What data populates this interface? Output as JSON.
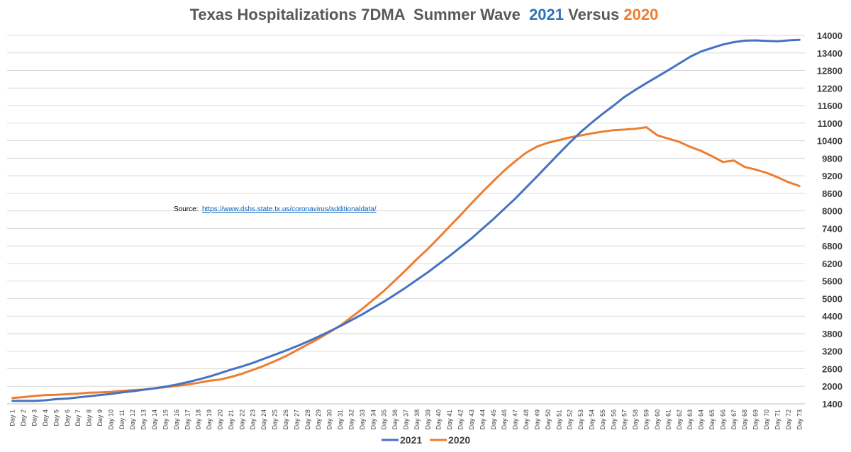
{
  "chart_data": {
    "type": "line",
    "title_parts": [
      {
        "text": "Texas Hospitalizations 7DMA  Summer Wave  ",
        "color": "#595959"
      },
      {
        "text": "2021",
        "color": "#2E75B6"
      },
      {
        "text": " Versus ",
        "color": "#595959"
      },
      {
        "text": "2020",
        "color": "#ED7D31"
      }
    ],
    "source_label": "Source:",
    "source_url": "https://www.dshs.state.tx.us/coronavirus/additionaldata/",
    "x_prefix": "Day ",
    "x_count": 73,
    "ylim": [
      1400,
      14000
    ],
    "ystep": 600,
    "grid": true,
    "legend_position": "bottom-center",
    "series": [
      {
        "name": "2021",
        "color": "#4472C4",
        "values": [
          1500,
          1500,
          1500,
          1520,
          1560,
          1580,
          1620,
          1660,
          1700,
          1740,
          1790,
          1830,
          1880,
          1930,
          1990,
          2060,
          2140,
          2230,
          2330,
          2450,
          2570,
          2680,
          2800,
          2940,
          3080,
          3220,
          3370,
          3530,
          3700,
          3880,
          4060,
          4260,
          4460,
          4680,
          4900,
          5140,
          5380,
          5640,
          5900,
          6180,
          6460,
          6760,
          7060,
          7390,
          7720,
          8070,
          8420,
          8800,
          9180,
          9570,
          9960,
          10340,
          10700,
          11020,
          11320,
          11600,
          11900,
          12140,
          12370,
          12590,
          12810,
          13040,
          13270,
          13450,
          13570,
          13690,
          13770,
          13820,
          13830,
          13810,
          13800,
          13830,
          13850
        ]
      },
      {
        "name": "2020",
        "color": "#ED7D31",
        "values": [
          1600,
          1630,
          1670,
          1700,
          1710,
          1730,
          1750,
          1780,
          1790,
          1810,
          1840,
          1870,
          1890,
          1930,
          1970,
          2010,
          2060,
          2120,
          2190,
          2230,
          2320,
          2430,
          2560,
          2700,
          2860,
          3030,
          3230,
          3430,
          3630,
          3850,
          4080,
          4360,
          4650,
          4960,
          5270,
          5620,
          5980,
          6350,
          6700,
          7080,
          7470,
          7860,
          8260,
          8650,
          9020,
          9380,
          9700,
          9990,
          10200,
          10330,
          10420,
          10510,
          10580,
          10650,
          10710,
          10760,
          10780,
          10810,
          10860,
          10580,
          10470,
          10360,
          10190,
          10050,
          9870,
          9670,
          9720,
          9500,
          9410,
          9300,
          9150,
          8980,
          8850
        ]
      }
    ]
  }
}
